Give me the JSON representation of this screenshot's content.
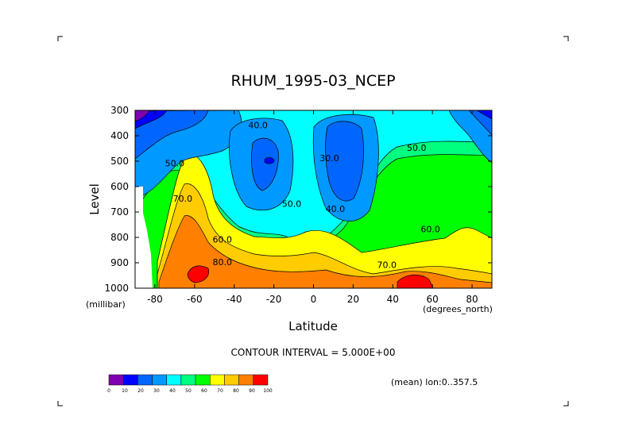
{
  "chart_data": {
    "type": "contour",
    "title": "RHUM_1995-03_NCEP",
    "variable": "RHUM",
    "xlabel": "Latitude",
    "x_unit": "(degrees_north)",
    "ylabel": "Level",
    "y_unit": "(millibar)",
    "x_ticks": [
      -80,
      -60,
      -40,
      -20,
      0,
      20,
      40,
      60,
      80
    ],
    "x_tick_labels": [
      "-80",
      "-60",
      "-40",
      "-20",
      "0",
      "20",
      "40",
      "60",
      "80"
    ],
    "y_ticks": [
      300,
      400,
      500,
      600,
      700,
      800,
      900,
      1000
    ],
    "y_tick_labels": [
      "300",
      "400",
      "500",
      "600",
      "700",
      "800",
      "900",
      "1000"
    ],
    "xlim": [
      -90,
      90
    ],
    "ylim": [
      1000,
      300
    ],
    "contour_interval_text": "CONTOUR INTERVAL = 5.000E+00",
    "mean_text": "(mean) lon:0..357.5",
    "contour_labels": [
      {
        "text": "40.0",
        "lat": -28,
        "level": 370
      },
      {
        "text": "30.0",
        "lat": 8,
        "level": 500
      },
      {
        "text": "50.0",
        "lat": 52,
        "level": 460
      },
      {
        "text": "50.0",
        "lat": -70,
        "level": 520
      },
      {
        "text": "50.0",
        "lat": -11,
        "level": 680
      },
      {
        "text": "70.0",
        "lat": -66,
        "level": 660
      },
      {
        "text": "40.0",
        "lat": 11,
        "level": 700
      },
      {
        "text": "60.0",
        "lat": -46,
        "level": 820
      },
      {
        "text": "60.0",
        "lat": 59,
        "level": 780
      },
      {
        "text": "80.0",
        "lat": -46,
        "level": 910
      },
      {
        "text": "70.0",
        "lat": 37,
        "level": 920
      }
    ],
    "colorbar": {
      "levels": [
        "0",
        "10",
        "20",
        "30",
        "40",
        "50",
        "60",
        "70",
        "80",
        "90",
        "100"
      ],
      "colors": [
        "#7f00b2",
        "#0000ff",
        "#0066ff",
        "#0099ff",
        "#00ffff",
        "#00ff7f",
        "#00ff00",
        "#ffff00",
        "#ffcc00",
        "#ff8000",
        "#ff0000"
      ]
    }
  }
}
